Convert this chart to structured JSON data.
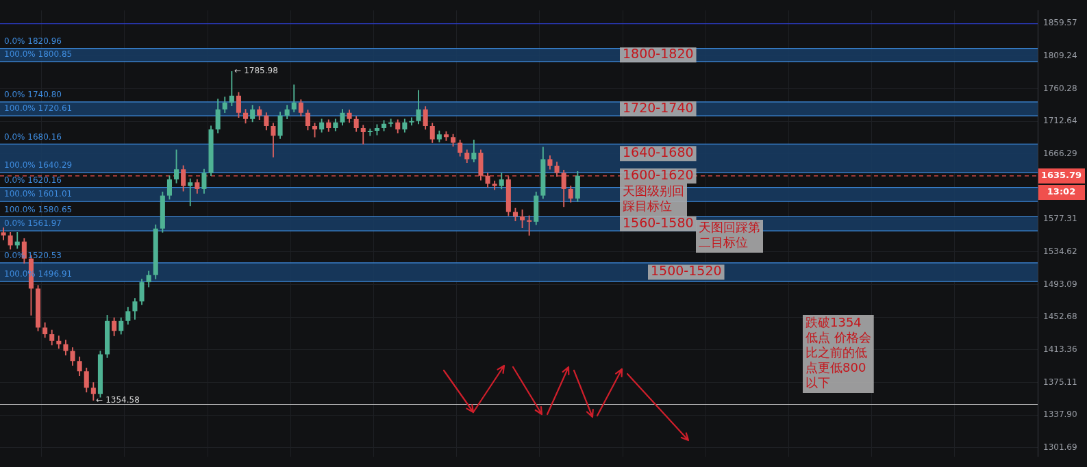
{
  "chart_data": {
    "type": "candlestick",
    "log": true,
    "grid": true,
    "tick_labels": "y",
    "legend": false,
    "categories": [
      null,
      null,
      null,
      null,
      null,
      null,
      null,
      null,
      null,
      null,
      null,
      null,
      null,
      null,
      null,
      null,
      null,
      null,
      null,
      null,
      null,
      null,
      null,
      null,
      null,
      null,
      null,
      null,
      null,
      null,
      null,
      null,
      null,
      null,
      null,
      null,
      null,
      null,
      null,
      null,
      null,
      null,
      null,
      null,
      null,
      null,
      null,
      null,
      null,
      null,
      null,
      null,
      null,
      null,
      null,
      null,
      null,
      null,
      null,
      null,
      null,
      null,
      null,
      null,
      null,
      null,
      null,
      null,
      null,
      null,
      null,
      null,
      null,
      null,
      null,
      null,
      null,
      null,
      null,
      null,
      null,
      null,
      null,
      null,
      null,
      null,
      null,
      null,
      null,
      null,
      null,
      null,
      null,
      null,
      null,
      null,
      null,
      null,
      null,
      null,
      null,
      null,
      null,
      null,
      null,
      null,
      null,
      null,
      null,
      null,
      null,
      null,
      null,
      null,
      null,
      null,
      null,
      null,
      null,
      null,
      null,
      null,
      null,
      null,
      null,
      null,
      null,
      null,
      null,
      null,
      null,
      null,
      null,
      null,
      null,
      null,
      null,
      null,
      null,
      null,
      null,
      null,
      null,
      null,
      null,
      null,
      null,
      null,
      null,
      null
    ],
    "ohlc": [
      [
        1560,
        1566,
        1550,
        1556
      ],
      [
        1556,
        1560,
        1538,
        1543
      ],
      [
        1543,
        1560,
        1539,
        1548
      ],
      [
        1548,
        1552,
        1520,
        1526
      ],
      [
        1526,
        1530,
        1455,
        1488
      ],
      [
        1488,
        1492,
        1436,
        1440
      ],
      [
        1440,
        1446,
        1428,
        1432
      ],
      [
        1432,
        1437,
        1419,
        1424
      ],
      [
        1424,
        1430,
        1415,
        1420
      ],
      [
        1420,
        1425,
        1407,
        1412
      ],
      [
        1412,
        1416,
        1395,
        1400
      ],
      [
        1400,
        1405,
        1383,
        1388
      ],
      [
        1388,
        1392,
        1364,
        1369
      ],
      [
        1369,
        1375,
        1354.58,
        1362
      ],
      [
        1362,
        1412,
        1358,
        1408
      ],
      [
        1408,
        1455,
        1404,
        1448
      ],
      [
        1448,
        1452,
        1430,
        1436
      ],
      [
        1436,
        1452,
        1432,
        1448
      ],
      [
        1448,
        1465,
        1444,
        1460
      ],
      [
        1460,
        1476,
        1450,
        1472
      ],
      [
        1472,
        1500,
        1468,
        1496
      ],
      [
        1496,
        1510,
        1490,
        1505
      ],
      [
        1505,
        1570,
        1500,
        1565
      ],
      [
        1565,
        1614,
        1560,
        1609
      ],
      [
        1609,
        1636,
        1604,
        1631
      ],
      [
        1631,
        1672,
        1626,
        1645
      ],
      [
        1645,
        1650,
        1615,
        1622
      ],
      [
        1622,
        1632,
        1595,
        1627
      ],
      [
        1627,
        1631,
        1612,
        1618
      ],
      [
        1618,
        1645,
        1612,
        1640
      ],
      [
        1640,
        1706,
        1636,
        1701
      ],
      [
        1701,
        1745,
        1696,
        1730
      ],
      [
        1730,
        1748,
        1725,
        1740
      ],
      [
        1740,
        1785.98,
        1735,
        1750
      ],
      [
        1750,
        1755,
        1718,
        1725
      ],
      [
        1725,
        1730,
        1710,
        1716
      ],
      [
        1716,
        1736,
        1712,
        1730
      ],
      [
        1730,
        1734,
        1715,
        1721
      ],
      [
        1721,
        1725,
        1700,
        1706
      ],
      [
        1706,
        1710,
        1662,
        1692
      ],
      [
        1692,
        1726,
        1688,
        1721
      ],
      [
        1721,
        1736,
        1716,
        1730
      ],
      [
        1730,
        1766,
        1726,
        1740
      ],
      [
        1740,
        1744,
        1720,
        1725
      ],
      [
        1725,
        1729,
        1700,
        1706
      ],
      [
        1706,
        1710,
        1690,
        1701
      ],
      [
        1701,
        1716,
        1697,
        1711
      ],
      [
        1711,
        1715,
        1698,
        1703
      ],
      [
        1703,
        1716,
        1699,
        1711
      ],
      [
        1711,
        1730,
        1707,
        1725
      ],
      [
        1725,
        1729,
        1711,
        1716
      ],
      [
        1716,
        1720,
        1698,
        1703
      ],
      [
        1703,
        1707,
        1680,
        1697
      ],
      [
        1697,
        1702,
        1692,
        1699
      ],
      [
        1699,
        1708,
        1693,
        1703
      ],
      [
        1703,
        1714,
        1699,
        1709
      ],
      [
        1709,
        1716,
        1705,
        1711
      ],
      [
        1711,
        1715,
        1696,
        1701
      ],
      [
        1701,
        1716,
        1697,
        1711
      ],
      [
        1711,
        1718,
        1707,
        1713
      ],
      [
        1713,
        1758,
        1709,
        1730
      ],
      [
        1730,
        1734,
        1701,
        1706
      ],
      [
        1706,
        1710,
        1682,
        1687
      ],
      [
        1687,
        1699,
        1683,
        1694
      ],
      [
        1694,
        1698,
        1685,
        1690
      ],
      [
        1690,
        1694,
        1677,
        1682
      ],
      [
        1682,
        1686,
        1663,
        1668
      ],
      [
        1668,
        1672,
        1654,
        1659
      ],
      [
        1659,
        1686,
        1655,
        1668
      ],
      [
        1668,
        1672,
        1630,
        1636
      ],
      [
        1636,
        1640,
        1620,
        1625
      ],
      [
        1625,
        1629,
        1617,
        1622
      ],
      [
        1622,
        1640,
        1618,
        1631
      ],
      [
        1631,
        1635,
        1582,
        1587
      ],
      [
        1587,
        1592,
        1575,
        1581
      ],
      [
        1581,
        1590,
        1566,
        1576
      ],
      [
        1576,
        1582,
        1556,
        1574
      ],
      [
        1574,
        1614,
        1570,
        1609
      ],
      [
        1609,
        1676,
        1605,
        1659
      ],
      [
        1659,
        1664,
        1645,
        1650
      ],
      [
        1650,
        1655,
        1635,
        1640
      ],
      [
        1640,
        1644,
        1594,
        1618
      ],
      [
        1618,
        1622,
        1600,
        1605
      ],
      [
        1605,
        1642,
        1601,
        1636
      ],
      null,
      null,
      null,
      null,
      null,
      null,
      null,
      null,
      null,
      null,
      null,
      null,
      null,
      null,
      null,
      null,
      null,
      null,
      null,
      null,
      null,
      null,
      null,
      null,
      null,
      null,
      null,
      null,
      null,
      null,
      null,
      null,
      null,
      null,
      null,
      null,
      null,
      null,
      null,
      null,
      null,
      null,
      null,
      null,
      null,
      null,
      null,
      null,
      null,
      null,
      null,
      null,
      null,
      null,
      null,
      null,
      null,
      null,
      null,
      null,
      null,
      null,
      null,
      null,
      null,
      null
    ],
    "ylim": [
      1292,
      1880
    ],
    "yticks": [
      1301.69,
      {
        "value": 1337.9,
        "label": "1337.90"
      },
      1375.11,
      1413.36,
      1452.68,
      1493.09,
      1534.62,
      1577.31,
      1666.29,
      1712.64,
      1760.28,
      1809.24,
      1859.57
    ],
    "bands": [
      {
        "axis": "y",
        "from": 1800.85,
        "to": 1820.96,
        "label": "1800-1820",
        "color": "#173b60"
      },
      {
        "axis": "y",
        "from": 1720.61,
        "to": 1740.8,
        "label": "1720-1740",
        "color": "#173b60"
      },
      {
        "axis": "y",
        "from": 1640.29,
        "to": 1680.16,
        "label": "1640-1680",
        "color": "#173b60"
      },
      {
        "axis": "y",
        "from": 1601.01,
        "to": 1620.16,
        "label": "1600-1620",
        "color": "#173b60"
      },
      {
        "axis": "y",
        "from": 1561.97,
        "to": 1580.65,
        "label": "1560-1580",
        "color": "#173b60"
      },
      {
        "axis": "y",
        "from": 1496.91,
        "to": 1520.53,
        "label": "1500-1520",
        "color": "#173b60"
      }
    ],
    "ref_lines": [
      {
        "axis": "y",
        "value": 1859,
        "color": "#2b3bc4"
      },
      {
        "axis": "y",
        "value": 1820.96,
        "label": "0.0% 1820.96",
        "color": "#3f8de0"
      },
      {
        "axis": "y",
        "value": 1800.85,
        "label": "100.0% 1800.85",
        "color": "#3f8de0"
      },
      {
        "axis": "y",
        "value": 1740.8,
        "label": "0.0% 1740.80",
        "color": "#3f8de0"
      },
      {
        "axis": "y",
        "value": 1720.61,
        "label": "100.0% 1720.61",
        "color": "#3f8de0"
      },
      {
        "axis": "y",
        "value": 1680.16,
        "label": "0.0% 1680.16",
        "color": "#3f8de0"
      },
      {
        "axis": "y",
        "value": 1640.29,
        "label": "100.0% 1640.29",
        "color": "#3f8de0"
      },
      {
        "axis": "y",
        "value": 1620.16,
        "label": "0.0% 1620.16",
        "color": "#3f8de0"
      },
      {
        "axis": "y",
        "value": 1601.01,
        "label": "100.0% 1601.01",
        "color": "#3f8de0"
      },
      {
        "axis": "y",
        "value": 1580.65,
        "label": "100.0% 1580.65",
        "color": "#3f8de0"
      },
      {
        "axis": "y",
        "value": 1561.97,
        "label": "0.0% 1561.97",
        "color": "#3f8de0"
      },
      {
        "axis": "y",
        "value": 1520.53,
        "label": "0.0% 1520.53",
        "color": "#3f8de0"
      },
      {
        "axis": "y",
        "value": 1496.91,
        "label": "100.0% 1496.91",
        "color": "#3f8de0"
      },
      {
        "axis": "y",
        "value": 1350,
        "color": "#d0d0d0"
      },
      {
        "axis": "y",
        "value": 1635.79,
        "label": "1635.79",
        "color": "#f0504d",
        "line_style": "dashed"
      }
    ],
    "annotations": [
      "← 1785.98",
      "← 1354.58",
      "天图级别回踩目标位",
      "天图回踩第二目标位",
      "跌破1354低点 价格会比之前的低点更低800以下",
      "13:02"
    ]
  }
}
